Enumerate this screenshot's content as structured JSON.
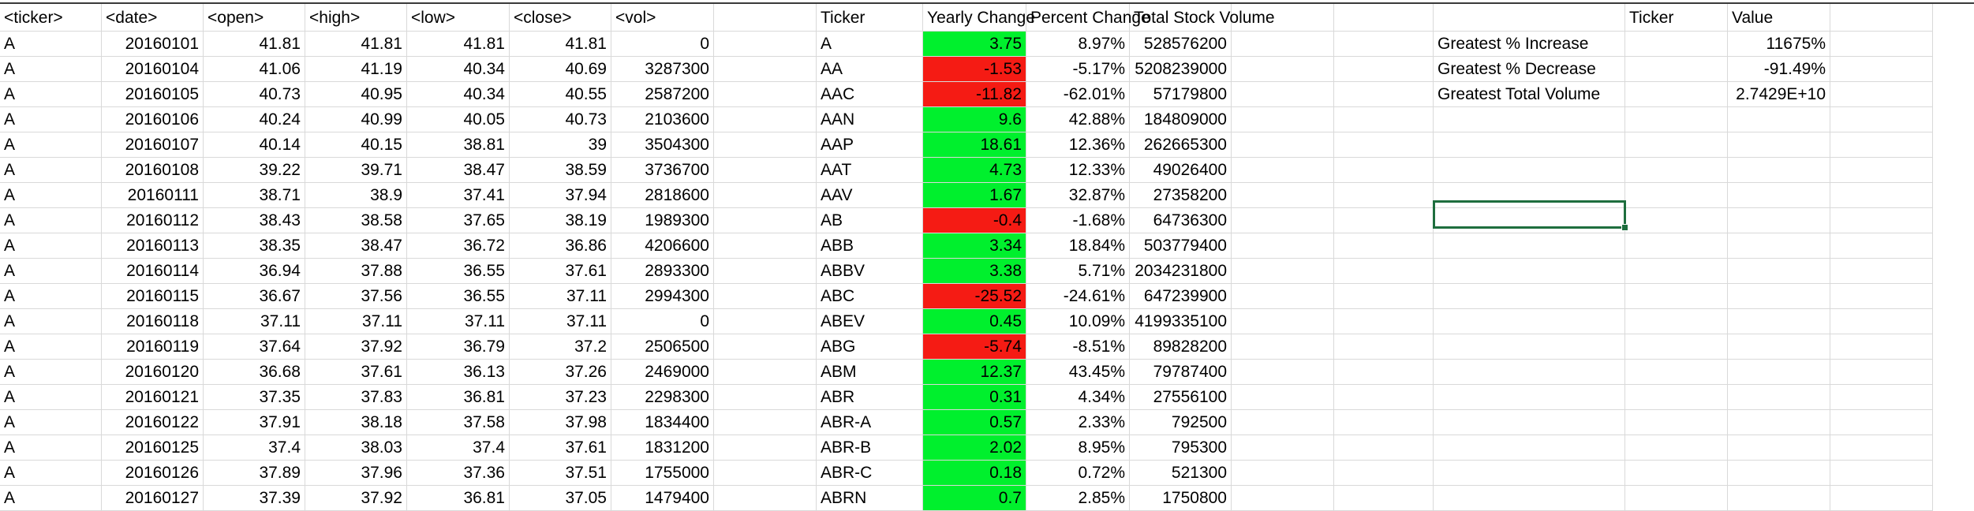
{
  "columns": {
    "A": "<ticker>",
    "B": "<date>",
    "C": "<open>",
    "D": "<high>",
    "E": "<low>",
    "F": "<close>",
    "G": "<vol>",
    "H": "",
    "I": "Ticker",
    "J": "Yearly Change",
    "K": "Percent Change",
    "L": "Total Stock Volume",
    "M": "",
    "N": "",
    "O": "",
    "P": "Ticker",
    "Q": "Value",
    "R": ""
  },
  "raw_rows": [
    [
      "A",
      "20160101",
      "41.81",
      "41.81",
      "41.81",
      "41.81",
      "0"
    ],
    [
      "A",
      "20160104",
      "41.06",
      "41.19",
      "40.34",
      "40.69",
      "3287300"
    ],
    [
      "A",
      "20160105",
      "40.73",
      "40.95",
      "40.34",
      "40.55",
      "2587200"
    ],
    [
      "A",
      "20160106",
      "40.24",
      "40.99",
      "40.05",
      "40.73",
      "2103600"
    ],
    [
      "A",
      "20160107",
      "40.14",
      "40.15",
      "38.81",
      "39",
      "3504300"
    ],
    [
      "A",
      "20160108",
      "39.22",
      "39.71",
      "38.47",
      "38.59",
      "3736700"
    ],
    [
      "A",
      "20160111",
      "38.71",
      "38.9",
      "37.41",
      "37.94",
      "2818600"
    ],
    [
      "A",
      "20160112",
      "38.43",
      "38.58",
      "37.65",
      "38.19",
      "1989300"
    ],
    [
      "A",
      "20160113",
      "38.35",
      "38.47",
      "36.72",
      "36.86",
      "4206600"
    ],
    [
      "A",
      "20160114",
      "36.94",
      "37.88",
      "36.55",
      "37.61",
      "2893300"
    ],
    [
      "A",
      "20160115",
      "36.67",
      "37.56",
      "36.55",
      "37.11",
      "2994300"
    ],
    [
      "A",
      "20160118",
      "37.11",
      "37.11",
      "37.11",
      "37.11",
      "0"
    ],
    [
      "A",
      "20160119",
      "37.64",
      "37.92",
      "36.79",
      "37.2",
      "2506500"
    ],
    [
      "A",
      "20160120",
      "36.68",
      "37.61",
      "36.13",
      "37.26",
      "2469000"
    ],
    [
      "A",
      "20160121",
      "37.35",
      "37.83",
      "36.81",
      "37.23",
      "2298300"
    ],
    [
      "A",
      "20160122",
      "37.91",
      "38.18",
      "37.58",
      "37.98",
      "1834400"
    ],
    [
      "A",
      "20160125",
      "37.4",
      "38.03",
      "37.4",
      "37.61",
      "1831200"
    ],
    [
      "A",
      "20160126",
      "37.89",
      "37.96",
      "37.36",
      "37.51",
      "1755000"
    ],
    [
      "A",
      "20160127",
      "37.39",
      "37.92",
      "36.81",
      "37.05",
      "1479400"
    ]
  ],
  "summary_rows": [
    {
      "ticker": "A",
      "change": "3.75",
      "pct": "8.97%",
      "volume": "528576200",
      "status": "positive"
    },
    {
      "ticker": "AA",
      "change": "-1.53",
      "pct": "-5.17%",
      "volume": "5208239000",
      "status": "negative"
    },
    {
      "ticker": "AAC",
      "change": "-11.82",
      "pct": "-62.01%",
      "volume": "57179800",
      "status": "negative"
    },
    {
      "ticker": "AAN",
      "change": "9.6",
      "pct": "42.88%",
      "volume": "184809000",
      "status": "positive"
    },
    {
      "ticker": "AAP",
      "change": "18.61",
      "pct": "12.36%",
      "volume": "262665300",
      "status": "positive"
    },
    {
      "ticker": "AAT",
      "change": "4.73",
      "pct": "12.33%",
      "volume": "49026400",
      "status": "positive"
    },
    {
      "ticker": "AAV",
      "change": "1.67",
      "pct": "32.87%",
      "volume": "27358200",
      "status": "positive"
    },
    {
      "ticker": "AB",
      "change": "-0.4",
      "pct": "-1.68%",
      "volume": "64736300",
      "status": "negative"
    },
    {
      "ticker": "ABB",
      "change": "3.34",
      "pct": "18.84%",
      "volume": "503779400",
      "status": "positive"
    },
    {
      "ticker": "ABBV",
      "change": "3.38",
      "pct": "5.71%",
      "volume": "2034231800",
      "status": "positive"
    },
    {
      "ticker": "ABC",
      "change": "-25.52",
      "pct": "-24.61%",
      "volume": "647239900",
      "status": "negative"
    },
    {
      "ticker": "ABEV",
      "change": "0.45",
      "pct": "10.09%",
      "volume": "4199335100",
      "status": "positive"
    },
    {
      "ticker": "ABG",
      "change": "-5.74",
      "pct": "-8.51%",
      "volume": "89828200",
      "status": "negative"
    },
    {
      "ticker": "ABM",
      "change": "12.37",
      "pct": "43.45%",
      "volume": "79787400",
      "status": "positive"
    },
    {
      "ticker": "ABR",
      "change": "0.31",
      "pct": "4.34%",
      "volume": "27556100",
      "status": "positive"
    },
    {
      "ticker": "ABR-A",
      "change": "0.57",
      "pct": "2.33%",
      "volume": "792500",
      "status": "positive"
    },
    {
      "ticker": "ABR-B",
      "change": "2.02",
      "pct": "8.95%",
      "volume": "795300",
      "status": "positive"
    },
    {
      "ticker": "ABR-C",
      "change": "0.18",
      "pct": "0.72%",
      "volume": "521300",
      "status": "positive"
    },
    {
      "ticker": "ABRN",
      "change": "0.7",
      "pct": "2.85%",
      "volume": "1750800",
      "status": "positive"
    }
  ],
  "greatest": [
    {
      "label": "Greatest % Increase",
      "ticker": "",
      "value": "11675%"
    },
    {
      "label": "Greatest % Decrease",
      "ticker": "",
      "value": "-91.49%"
    },
    {
      "label": "Greatest Total Volume",
      "ticker": "",
      "value": "2.7429E+10"
    }
  ],
  "colors": {
    "positive": "#00f02d",
    "negative": "#f51b14",
    "selection": "#1e6e3e",
    "gridline": "#d9d9d9"
  }
}
